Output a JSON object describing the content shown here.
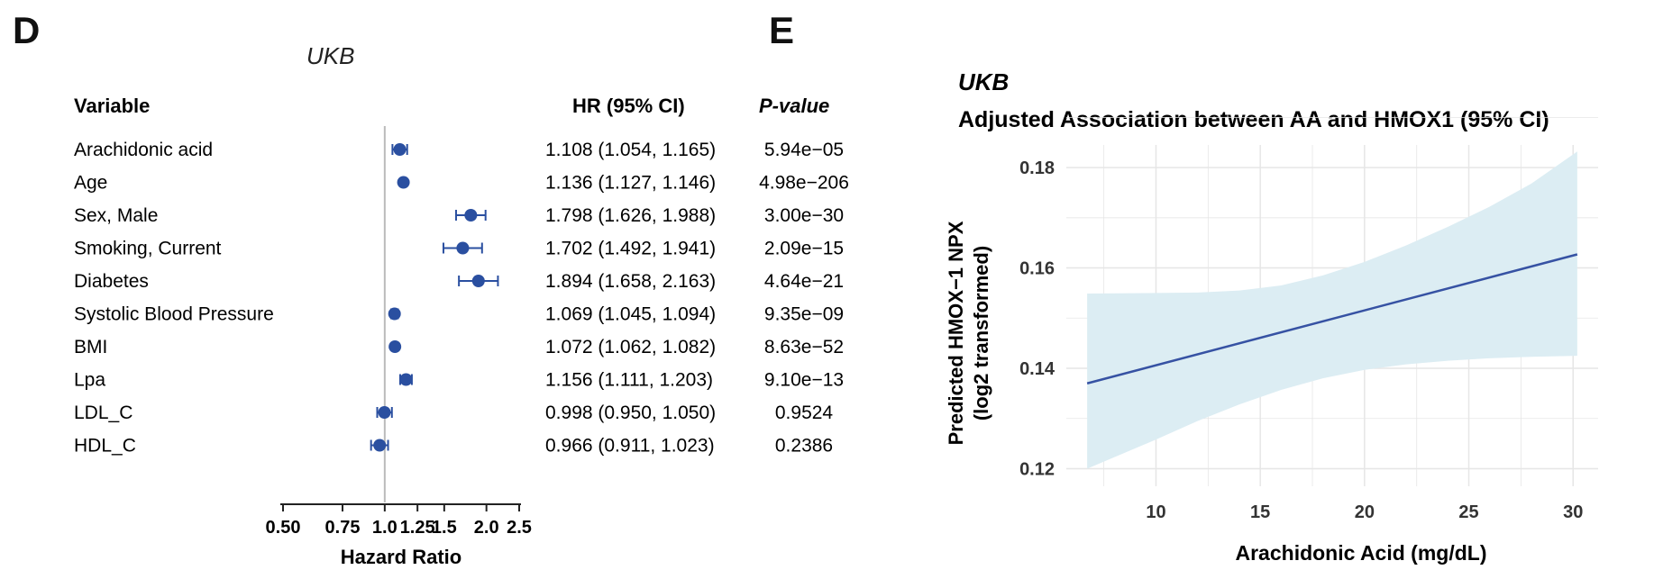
{
  "panels": {
    "d": {
      "letter": "D"
    },
    "e": {
      "letter": "E"
    }
  },
  "chart_data": [
    {
      "type": "forest",
      "subtitle": "UKB",
      "columns": {
        "variable": "Variable",
        "hr": "HR (95% CI)",
        "p": "P-value"
      },
      "xlabel": "Hazard Ratio",
      "xscale": "log",
      "xticks": [
        "0.50",
        "0.75",
        "1.0",
        "1.25",
        "1.5",
        "2.0",
        "2.5"
      ],
      "reference_line": 1.0,
      "rows": [
        {
          "variable": "Arachidonic acid",
          "hr": 1.108,
          "lo": 1.054,
          "hi": 1.165,
          "hr_text": "1.108 (1.054, 1.165)",
          "p": "5.94e−05"
        },
        {
          "variable": "Age",
          "hr": 1.136,
          "lo": 1.127,
          "hi": 1.146,
          "hr_text": "1.136 (1.127, 1.146)",
          "p": "4.98e−206"
        },
        {
          "variable": "Sex, Male",
          "hr": 1.798,
          "lo": 1.626,
          "hi": 1.988,
          "hr_text": "1.798 (1.626, 1.988)",
          "p": "3.00e−30"
        },
        {
          "variable": "Smoking, Current",
          "hr": 1.702,
          "lo": 1.492,
          "hi": 1.941,
          "hr_text": "1.702 (1.492, 1.941)",
          "p": "2.09e−15"
        },
        {
          "variable": "Diabetes",
          "hr": 1.894,
          "lo": 1.658,
          "hi": 2.163,
          "hr_text": "1.894 (1.658, 2.163)",
          "p": "4.64e−21"
        },
        {
          "variable": "Systolic Blood Pressure",
          "hr": 1.069,
          "lo": 1.045,
          "hi": 1.094,
          "hr_text": "1.069 (1.045, 1.094)",
          "p": "9.35e−09"
        },
        {
          "variable": "BMI",
          "hr": 1.072,
          "lo": 1.062,
          "hi": 1.082,
          "hr_text": "1.072 (1.062, 1.082)",
          "p": "8.63e−52"
        },
        {
          "variable": "Lpa",
          "hr": 1.156,
          "lo": 1.111,
          "hi": 1.203,
          "hr_text": "1.156 (1.111, 1.203)",
          "p": "9.10e−13"
        },
        {
          "variable": "LDL_C",
          "hr": 0.998,
          "lo": 0.95,
          "hi": 1.05,
          "hr_text": "0.998 (0.950, 1.050)",
          "p": "0.9524"
        },
        {
          "variable": "HDL_C",
          "hr": 0.966,
          "lo": 0.911,
          "hi": 1.023,
          "hr_text": "0.966 (0.911, 1.023)",
          "p": "0.2386"
        }
      ],
      "colors": {
        "point": "#2a4fa0",
        "refline": "#bbbbbb"
      }
    },
    {
      "type": "line",
      "subtitle": "UKB",
      "title": "Adjusted Association between AA and HMOX1 (95% CI)",
      "xlabel": "Arachidonic Acid (mg/dL)",
      "ylabel_lines": [
        "Predicted HMOX−1 NPX",
        "(log2 transformed)"
      ],
      "xlim": [
        5.7,
        31.2
      ],
      "ylim": [
        0.1165,
        0.1845
      ],
      "xticks": [
        10,
        15,
        20,
        25,
        30
      ],
      "yticks": [
        0.12,
        0.14,
        0.16,
        0.18
      ],
      "ytick_labels": [
        "0.12",
        "0.14",
        "0.16",
        "0.18"
      ],
      "line": {
        "x": [
          6.7,
          30.2
        ],
        "y": [
          0.137,
          0.1627
        ]
      },
      "band": {
        "x": [
          6.7,
          10,
          12,
          14,
          16,
          18,
          20,
          22,
          24,
          26,
          28,
          30.2
        ],
        "lower": [
          0.12,
          0.1258,
          0.1295,
          0.1328,
          0.1357,
          0.138,
          0.1397,
          0.1408,
          0.1415,
          0.142,
          0.1423,
          0.1425
        ],
        "upper": [
          0.1549,
          0.155,
          0.1551,
          0.1555,
          0.1565,
          0.1585,
          0.1612,
          0.1645,
          0.1682,
          0.1722,
          0.1768,
          0.1832
        ]
      },
      "colors": {
        "line": "#3652a3",
        "band": "#dcedf3",
        "grid": "#e6e6e6"
      }
    }
  ]
}
